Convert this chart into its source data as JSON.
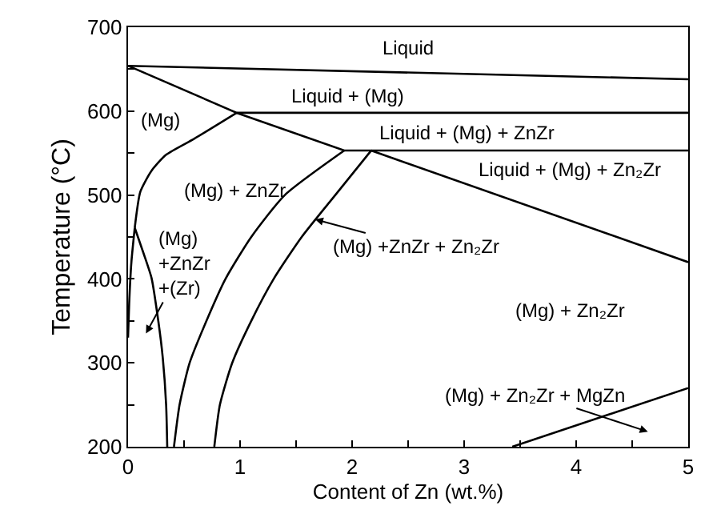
{
  "chart_data": {
    "type": "line",
    "xlabel": "Content of Zn (wt.%)",
    "ylabel": "Temperature (°C)",
    "xlim": [
      0,
      5
    ],
    "ylim": [
      200,
      700
    ],
    "xticks": [
      0,
      {
        "value": 0.5,
        "label": null
      },
      1,
      {
        "value": 1.5,
        "label": null
      },
      2,
      {
        "value": 2.5,
        "label": null
      },
      3,
      {
        "value": 3.5,
        "label": null
      },
      4,
      {
        "value": 4.5,
        "label": null
      },
      5
    ],
    "yticks": [
      200,
      {
        "value": 250,
        "label": null
      },
      300,
      {
        "value": 350,
        "label": null
      },
      400,
      {
        "value": 450,
        "label": null
      },
      500,
      {
        "value": 550,
        "label": null
      },
      600,
      {
        "value": 650,
        "label": null
      },
      700
    ],
    "line_style": "solid",
    "series": [
      {
        "color": "#000000",
        "x": [
          0,
          5
        ],
        "values": [
          654,
          638
        ]
      },
      {
        "color": "#000000",
        "x": [
          0,
          0.97,
          5
        ],
        "values": [
          654,
          598,
          598
        ]
      },
      {
        "color": "#000000",
        "x": [
          0.97,
          1.93,
          5
        ],
        "values": [
          598,
          553,
          553
        ]
      },
      {
        "color": "#000000",
        "x": [
          2.17,
          5
        ],
        "values": [
          553,
          420
        ]
      },
      {
        "color": "#000000",
        "x": [
          0.06,
          0.11,
          0.21,
          0.34,
          0.59,
          0.97
        ],
        "values": [
          461,
          504,
          529,
          548,
          567,
          598
        ]
      },
      {
        "color": "#000000",
        "x": [
          0.06,
          0.03,
          0.01,
          0
        ],
        "values": [
          461,
          420,
          370,
          330
        ]
      },
      {
        "color": "#000000",
        "x": [
          0.06,
          0.14,
          0.21,
          0.27,
          0.31,
          0.34,
          0.35
        ],
        "values": [
          461,
          430,
          401,
          350,
          306,
          250,
          200
        ]
      },
      {
        "color": "#000000",
        "x": [
          0.41,
          0.46,
          0.55,
          0.7,
          0.87,
          1.1,
          1.4,
          1.93
        ],
        "values": [
          200,
          250,
          300,
          350,
          400,
          450,
          500,
          553
        ]
      },
      {
        "color": "#000000",
        "x": [
          0.77,
          0.82,
          0.93,
          1.1,
          1.3,
          1.55,
          1.85,
          2.17
        ],
        "values": [
          200,
          250,
          300,
          350,
          400,
          450,
          500,
          553
        ]
      },
      {
        "color": "#000000",
        "x": [
          3.43,
          5
        ],
        "values": [
          200,
          270
        ]
      }
    ],
    "annotations": [
      "Liquid",
      "Liquid + (Mg)",
      "(Mg)",
      "Liquid + (Mg) + ZnZr",
      "Liquid + (Mg) + Zn₂Zr",
      "(Mg) + ZnZr",
      {
        "text": "(Mg) +ZnZr + Zn₂Zr",
        "x": 1.67,
        "y": 471
      },
      "(Mg)\n+ZnZr\n+(Zr)",
      "(Mg) + Zn₂Zr",
      "(Mg) + Zn₂Zr + MgZn"
    ]
  }
}
